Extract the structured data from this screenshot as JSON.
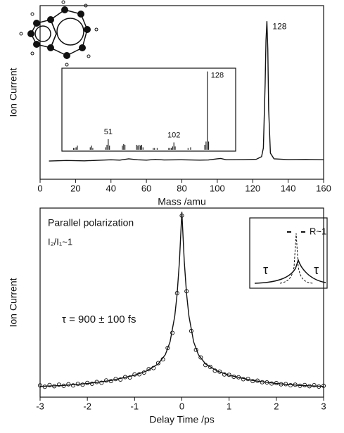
{
  "chart_data": [
    {
      "type": "line",
      "xlabel": "Mass /amu",
      "ylabel": "Ion Current",
      "xlim": [
        0,
        160
      ],
      "xticks": [
        0,
        20,
        40,
        60,
        80,
        100,
        120,
        140,
        160
      ],
      "ylim": [
        0,
        1
      ],
      "x": [
        5,
        15,
        25,
        35,
        40,
        45,
        50,
        55,
        60,
        65,
        70,
        80,
        90,
        95,
        100,
        102,
        105,
        115,
        122,
        125,
        126,
        127,
        127.5,
        128,
        128.5,
        129,
        130,
        132,
        140,
        150,
        160
      ],
      "series": [
        {
          "color": "#111",
          "values": [
            0.105,
            0.108,
            0.106,
            0.11,
            0.112,
            0.11,
            0.118,
            0.112,
            0.11,
            0.114,
            0.111,
            0.112,
            0.11,
            0.111,
            0.118,
            0.12,
            0.112,
            0.113,
            0.115,
            0.13,
            0.18,
            0.55,
            0.8,
            0.91,
            0.75,
            0.4,
            0.15,
            0.118,
            0.113,
            0.114,
            0.112
          ]
        }
      ],
      "peak_label": 128,
      "inset": {
        "type": "bar",
        "xlim": [
          15,
          150
        ],
        "ylim": [
          0,
          1
        ],
        "x": [
          24,
          25,
          26,
          27,
          37,
          38,
          39,
          49,
          50,
          51,
          52,
          62,
          63,
          64,
          73,
          74,
          75,
          76,
          77,
          78,
          86,
          87,
          89,
          98,
          99,
          100,
          101,
          102,
          103,
          113,
          115,
          126,
          127,
          128,
          129
        ],
        "values": [
          0.02,
          0.02,
          0.03,
          0.05,
          0.03,
          0.05,
          0.02,
          0.03,
          0.06,
          0.13,
          0.05,
          0.05,
          0.07,
          0.06,
          0.06,
          0.05,
          0.06,
          0.05,
          0.06,
          0.03,
          0.02,
          0.02,
          0.02,
          0.02,
          0.02,
          0.02,
          0.04,
          0.09,
          0.04,
          0.02,
          0.03,
          0.06,
          0.1,
          0.96,
          0.1
        ],
        "peak_labels": [
          51,
          102,
          128
        ]
      }
    },
    {
      "type": "line",
      "xlabel": "Delay Time /ps",
      "ylabel": "Ion Current",
      "xlim": [
        -3,
        3
      ],
      "xticks": [
        -3,
        -2,
        -1,
        0,
        1,
        2,
        3
      ],
      "ylim": [
        0,
        1
      ],
      "x": [
        -3,
        -2.9,
        -2.8,
        -2.7,
        -2.6,
        -2.5,
        -2.4,
        -2.3,
        -2.2,
        -2.1,
        -2,
        -1.9,
        -1.8,
        -1.7,
        -1.6,
        -1.5,
        -1.4,
        -1.3,
        -1.2,
        -1.1,
        -1,
        -0.9,
        -0.8,
        -0.7,
        -0.6,
        -0.5,
        -0.4,
        -0.3,
        -0.2,
        -0.1,
        0,
        0.1,
        0.2,
        0.3,
        0.4,
        0.5,
        0.6,
        0.7,
        0.8,
        0.9,
        1,
        1.1,
        1.2,
        1.3,
        1.4,
        1.5,
        1.6,
        1.7,
        1.8,
        1.9,
        2,
        2.1,
        2.2,
        2.3,
        2.4,
        2.5,
        2.6,
        2.7,
        2.8,
        2.9,
        3
      ],
      "series": [
        {
          "color": "#111",
          "marker": "circle",
          "values": [
            0.062,
            0.055,
            0.064,
            0.058,
            0.066,
            0.06,
            0.068,
            0.062,
            0.07,
            0.066,
            0.075,
            0.071,
            0.08,
            0.076,
            0.088,
            0.085,
            0.096,
            0.093,
            0.106,
            0.104,
            0.12,
            0.121,
            0.13,
            0.148,
            0.154,
            0.18,
            0.2,
            0.26,
            0.34,
            0.55,
            0.96,
            0.56,
            0.35,
            0.25,
            0.21,
            0.17,
            0.16,
            0.14,
            0.135,
            0.12,
            0.118,
            0.108,
            0.105,
            0.095,
            0.096,
            0.085,
            0.087,
            0.079,
            0.078,
            0.072,
            0.074,
            0.068,
            0.069,
            0.063,
            0.066,
            0.06,
            0.064,
            0.058,
            0.063,
            0.056,
            0.06
          ]
        },
        {
          "color": "#111",
          "x": [
            -3,
            -2.5,
            -2,
            -1.5,
            -1,
            -0.75,
            -0.5,
            -0.35,
            -0.25,
            -0.15,
            -0.1,
            -0.05,
            0,
            0.05,
            0.1,
            0.15,
            0.25,
            0.35,
            0.5,
            0.75,
            1,
            1.5,
            2,
            2.5,
            3
          ],
          "values": [
            0.057,
            0.062,
            0.072,
            0.088,
            0.116,
            0.138,
            0.176,
            0.225,
            0.292,
            0.428,
            0.546,
            0.72,
            0.98,
            0.72,
            0.546,
            0.428,
            0.292,
            0.225,
            0.176,
            0.138,
            0.116,
            0.088,
            0.072,
            0.062,
            0.057
          ]
        }
      ],
      "annotations": [
        "Parallel polarization",
        "I₂/I₁~1",
        "τ = 900 ± 100 fs"
      ],
      "inset_labels": [
        "R~1",
        "τ",
        "τ"
      ]
    }
  ]
}
